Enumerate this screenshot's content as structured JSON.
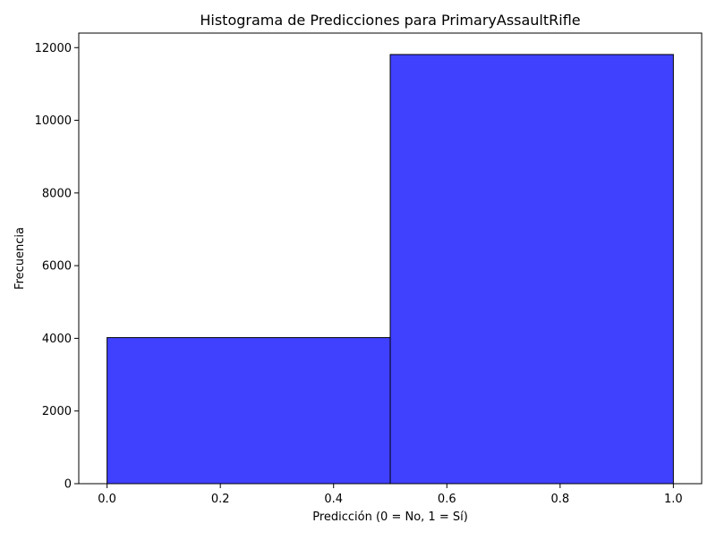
{
  "chart_data": {
    "type": "bar",
    "title": "Histograma de Predicciones para PrimaryAssaultRifle",
    "xlabel": "Predicción (0 = No, 1 = Sí)",
    "ylabel": "Frecuencia",
    "bins": [
      {
        "x0": 0.0,
        "x1": 0.5,
        "value": 4020
      },
      {
        "x0": 0.5,
        "x1": 1.0,
        "value": 11810
      }
    ],
    "xlim": [
      -0.05,
      1.05
    ],
    "ylim": [
      0,
      12400
    ],
    "x_ticks": [
      {
        "value": 0.0,
        "label": "0.0"
      },
      {
        "value": 0.2,
        "label": "0.2"
      },
      {
        "value": 0.4,
        "label": "0.4"
      },
      {
        "value": 0.6,
        "label": "0.6"
      },
      {
        "value": 0.8,
        "label": "0.8"
      },
      {
        "value": 1.0,
        "label": "1.0"
      }
    ],
    "y_ticks": [
      {
        "value": 0,
        "label": "0"
      },
      {
        "value": 2000,
        "label": "2000"
      },
      {
        "value": 4000,
        "label": "4000"
      },
      {
        "value": 6000,
        "label": "6000"
      },
      {
        "value": 8000,
        "label": "8000"
      },
      {
        "value": 10000,
        "label": "10000"
      },
      {
        "value": 12000,
        "label": "12000"
      }
    ],
    "bar_color": "#4040ff",
    "edge_color": "#000000",
    "grid": false,
    "legend": "none"
  }
}
